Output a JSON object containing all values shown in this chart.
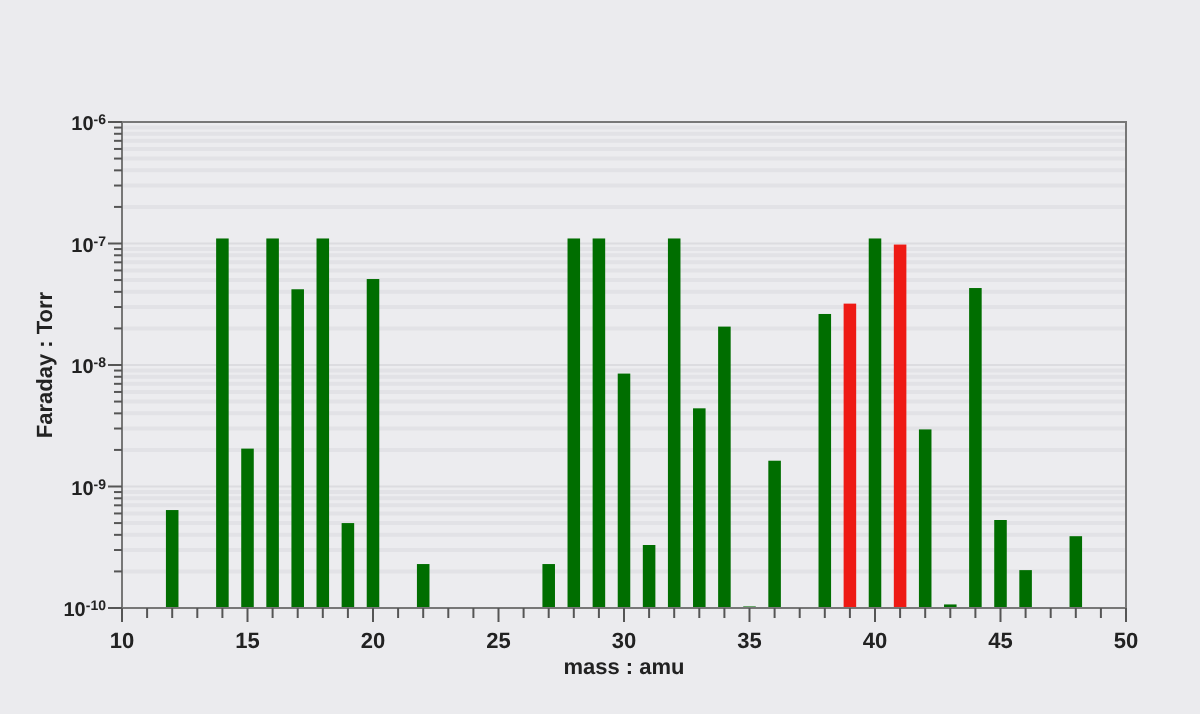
{
  "chart_data": {
    "type": "bar",
    "xlabel": "mass : amu",
    "ylabel": "Faraday : Torr",
    "log": "y",
    "grid": "y",
    "x": [
      12,
      14,
      15,
      16,
      17,
      18,
      19,
      20,
      22,
      27,
      28,
      29,
      30,
      31,
      32,
      33,
      34,
      35,
      36,
      38,
      39,
      40,
      41,
      42,
      43,
      44,
      45,
      46,
      48
    ],
    "values": [
      6.4e-10,
      1.1e-07,
      2.05e-09,
      1.1e-07,
      4.2e-08,
      1.1e-07,
      5e-10,
      5.1e-08,
      2.3e-10,
      2.3e-10,
      1.1e-07,
      1.1e-07,
      8.5e-09,
      3.3e-10,
      1.1e-07,
      4.4e-09,
      2.07e-08,
      1.03e-10,
      1.63e-09,
      2.63e-08,
      3.2e-08,
      1.1e-07,
      9.8e-08,
      2.95e-09,
      1.07e-10,
      4.3e-08,
      5.3e-10,
      2.05e-10,
      3.9e-10
    ],
    "colors": [
      "#006e00",
      "#006e00",
      "#006e00",
      "#006e00",
      "#006e00",
      "#006e00",
      "#006e00",
      "#006e00",
      "#006e00",
      "#006e00",
      "#006e00",
      "#006e00",
      "#006e00",
      "#006e00",
      "#006e00",
      "#006e00",
      "#006e00",
      "#006e00",
      "#006e00",
      "#006e00",
      "#ee1a14",
      "#006e00",
      "#ee1a14",
      "#006e00",
      "#006e00",
      "#006e00",
      "#006e00",
      "#006e00",
      "#006e00"
    ],
    "xlim": [
      10,
      50
    ],
    "xticks": [
      10,
      {
        "value": 11,
        "label": null
      },
      {
        "value": 12,
        "label": null
      },
      {
        "value": 13,
        "label": null
      },
      {
        "value": 14,
        "label": null
      },
      15,
      {
        "value": 16,
        "label": null
      },
      {
        "value": 17,
        "label": null
      },
      {
        "value": 18,
        "label": null
      },
      {
        "value": 19,
        "label": null
      },
      20,
      {
        "value": 21,
        "label": null
      },
      {
        "value": 22,
        "label": null
      },
      {
        "value": 23,
        "label": null
      },
      {
        "value": 24,
        "label": null
      },
      25,
      {
        "value": 26,
        "label": null
      },
      {
        "value": 27,
        "label": null
      },
      {
        "value": 28,
        "label": null
      },
      {
        "value": 29,
        "label": null
      },
      30,
      {
        "value": 31,
        "label": null
      },
      {
        "value": 32,
        "label": null
      },
      {
        "value": 33,
        "label": null
      },
      {
        "value": 34,
        "label": null
      },
      35,
      {
        "value": 36,
        "label": null
      },
      {
        "value": 37,
        "label": null
      },
      {
        "value": 38,
        "label": null
      },
      {
        "value": 39,
        "label": null
      },
      40,
      {
        "value": 41,
        "label": null
      },
      {
        "value": 42,
        "label": null
      },
      {
        "value": 43,
        "label": null
      },
      {
        "value": 44,
        "label": null
      },
      45,
      {
        "value": 46,
        "label": null
      },
      {
        "value": 47,
        "label": null
      },
      {
        "value": 48,
        "label": null
      },
      {
        "value": 49,
        "label": null
      },
      50
    ],
    "ylim": [
      1e-10,
      1e-06
    ],
    "yticks": [
      {
        "value": 1e-10,
        "label": "10$^{-10}$"
      },
      {
        "value": 1e-09,
        "label": "10$^{-9}$"
      },
      {
        "value": 1e-08,
        "label": "10$^{-8}$"
      },
      {
        "value": 1e-07,
        "label": "10$^{-7}$"
      },
      {
        "value": 1e-06,
        "label": "10$^{-6}$"
      }
    ]
  }
}
